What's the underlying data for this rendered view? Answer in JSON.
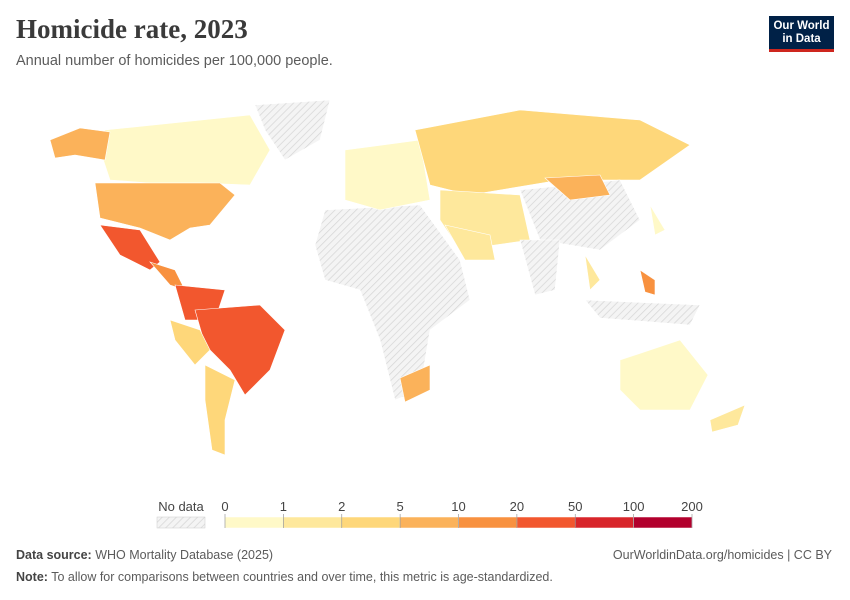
{
  "header": {
    "title": "Homicide rate, 2023",
    "subtitle": "Annual number of homicides per 100,000 people.",
    "logo": [
      "Our World",
      "in Data"
    ]
  },
  "legend": {
    "no_data_label": "No data",
    "bins": [
      0,
      1,
      2,
      5,
      10,
      20,
      50,
      100,
      200
    ],
    "colors": [
      "#fff9c8",
      "#fee89c",
      "#fed77a",
      "#fbb25a",
      "#f8913f",
      "#f2572e",
      "#d8252a",
      "#b2002d"
    ]
  },
  "footer": {
    "source_label": "Data source:",
    "source": "WHO Mortality Database (2025)",
    "url": "OurWorldinData.org/homicides | CC BY",
    "note_label": "Note:",
    "note": "To allow for comparisons between countries and over time, this metric is age-standardized."
  }
}
